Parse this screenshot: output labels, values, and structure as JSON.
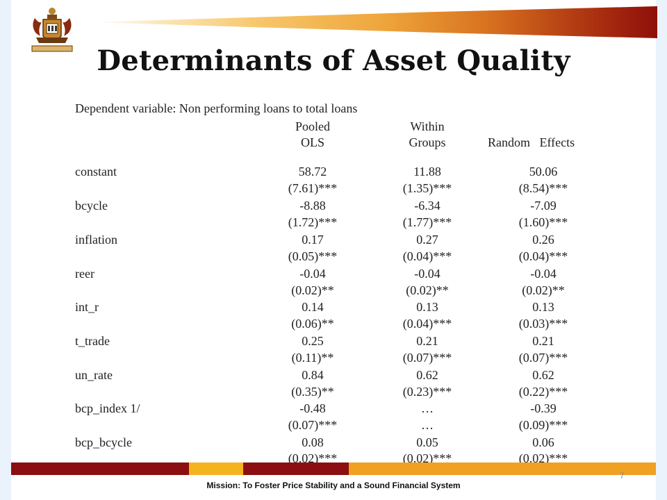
{
  "slide": {
    "title": "Determinants of Asset Quality",
    "mission": "Mission: To Foster Price Stability and a Sound Financial System",
    "page_number": "7",
    "logo": "bank-crest-icon"
  },
  "regression": {
    "dependent": "Dependent variable: Non performing loans to total loans",
    "headers": {
      "col1_line1": "Pooled",
      "col1_line2": "OLS",
      "col2_line1": "Within",
      "col2_line2": "Groups",
      "col3": "Random   Effects"
    },
    "rows": [
      {
        "variable": "constant",
        "ols": "58.72",
        "wg": "11.88",
        "re": "50.06",
        "ols_se": "(7.61)***",
        "wg_se": "(1.35)***",
        "re_se": "(8.54)***"
      },
      {
        "variable": "bcycle",
        "ols": "-8.88",
        "wg": "-6.34",
        "re": "-7.09",
        "ols_se": "(1.72)***",
        "wg_se": "(1.77)***",
        "re_se": "(1.60)***"
      },
      {
        "variable": "inflation",
        "ols": "0.17",
        "wg": "0.27",
        "re": "0.26",
        "ols_se": "(0.05)***",
        "wg_se": "(0.04)***",
        "re_se": "(0.04)***"
      },
      {
        "variable": "reer",
        "ols": "-0.04",
        "wg": "-0.04",
        "re": "-0.04",
        "ols_se": "(0.02)**",
        "wg_se": "(0.02)**",
        "re_se": "(0.02)**"
      },
      {
        "variable": "int_r",
        "ols": "0.14",
        "wg": "0.13",
        "re": "0.13",
        "ols_se": "(0.06)**",
        "wg_se": "(0.04)***",
        "re_se": "(0.03)***"
      },
      {
        "variable": "t_trade",
        "ols": "0.25",
        "wg": "0.21",
        "re": "0.21",
        "ols_se": "(0.11)**",
        "wg_se": "(0.07)***",
        "re_se": "(0.07)***"
      },
      {
        "variable": "un_rate",
        "ols": "0.84",
        "wg": "0.62",
        "re": "0.62",
        "ols_se": "(0.35)**",
        "wg_se": "(0.23)***",
        "re_se": "(0.22)***"
      },
      {
        "variable": "bcp_index 1/",
        "ols": "-0.48",
        "wg": "…",
        "re": "-0.39",
        "ols_se": "(0.07)***",
        "wg_se": "…",
        "re_se": "(0.09)***"
      },
      {
        "variable": "bcp_bcycle",
        "ols": "0.08",
        "wg": "0.05",
        "re": "0.06",
        "ols_se": "(0.02)***",
        "wg_se": "(0.02)***",
        "re_se": "(0.02)***"
      }
    ]
  },
  "colors": {
    "footer_red": "#8b0f10",
    "footer_gold": "#f5b41f",
    "footer_orange": "#f0a022",
    "ribbon_dark": "#8e0f0a",
    "side_panel": "#eaf2fb"
  }
}
